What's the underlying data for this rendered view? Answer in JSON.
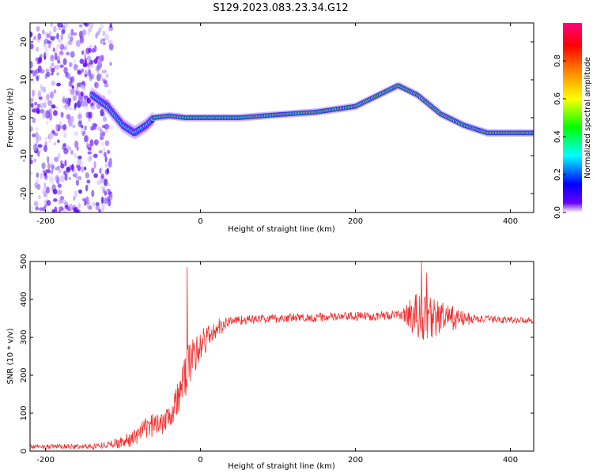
{
  "figure": {
    "title": "S129.2023.083.23.34.G12"
  },
  "chart_data": [
    {
      "type": "heatmap",
      "xlabel": "Height of straight line (km)",
      "ylabel": "Frequency (Hz)",
      "xlim": [
        -220,
        430
      ],
      "ylim": [
        -25,
        25
      ],
      "xticks": [
        -200,
        0,
        200,
        400
      ],
      "yticks": [
        -20,
        -10,
        0,
        10,
        20
      ],
      "grid": false,
      "colorbar": {
        "label": "Normalized spectral amplitude",
        "range": [
          0,
          1
        ],
        "ticks": [
          "0.0",
          "0.2",
          "0.4",
          "0.6",
          "0.8"
        ],
        "colormap": [
          "#ffffff",
          "#6a00ff",
          "#0000ff",
          "#00ffff",
          "#00ff00",
          "#ffff00",
          "#ff8000",
          "#ff0000",
          "#ff0080"
        ]
      },
      "ridge": {
        "x": [
          -140,
          -120,
          -100,
          -85,
          -70,
          -60,
          -40,
          -20,
          0,
          50,
          100,
          150,
          200,
          230,
          255,
          280,
          310,
          340,
          370,
          430
        ],
        "y": [
          6,
          3,
          -2,
          -4,
          -2,
          0,
          0.5,
          0,
          0,
          0,
          0.8,
          1.5,
          3,
          6,
          8.5,
          6,
          1,
          -2,
          -4,
          -4
        ]
      },
      "noise_region_x": [
        -220,
        -130
      ]
    },
    {
      "type": "line",
      "xlabel": "Height of straight line (km)",
      "ylabel": "SNR (10 * v/v)",
      "xlim": [
        -220,
        430
      ],
      "ylim": [
        0,
        500
      ],
      "xticks": [
        -200,
        0,
        200,
        400
      ],
      "yticks": [
        0,
        100,
        200,
        300,
        400,
        500
      ],
      "grid": false,
      "color": "#f03030",
      "trend": {
        "x": [
          -220,
          -140,
          -110,
          -90,
          -70,
          -50,
          -35,
          -25,
          -15,
          0,
          20,
          40,
          100,
          200,
          270,
          280,
          320,
          430
        ],
        "y": [
          12,
          12,
          20,
          30,
          60,
          80,
          110,
          160,
          230,
          280,
          320,
          345,
          350,
          355,
          360,
          355,
          350,
          345
        ]
      },
      "noise_amplitude": {
        "x": [
          -220,
          -120,
          -80,
          -40,
          -20,
          0,
          40,
          260,
          280,
          300,
          340,
          360,
          430
        ],
        "y": [
          5,
          8,
          25,
          40,
          60,
          45,
          12,
          12,
          70,
          55,
          20,
          10,
          8
        ]
      },
      "spikes": [
        {
          "x": -17,
          "y": 485
        },
        {
          "x": 285,
          "y": 500
        },
        {
          "x": 292,
          "y": 470
        }
      ]
    }
  ]
}
